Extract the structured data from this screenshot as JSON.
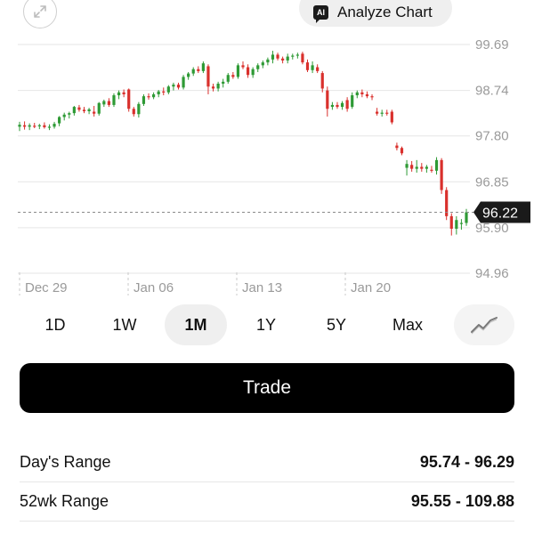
{
  "header": {
    "expand_icon": "expand-arrows-icon",
    "analyze_button": {
      "badge": "AI",
      "label": "Analyze Chart"
    }
  },
  "chart_data": {
    "type": "candlestick",
    "ylim": [
      94.96,
      99.69
    ],
    "y_ticks": [
      "99.69",
      "98.74",
      "97.80",
      "96.85",
      "95.90",
      "94.96"
    ],
    "x_ticks": [
      "Dec 29",
      "Jan 06",
      "Jan 13",
      "Jan 20"
    ],
    "current_price": "96.22",
    "colors": {
      "up": "#2e9a35",
      "down": "#d9302c",
      "grid": "#e6e6e6",
      "axis_text": "#9a9a9a",
      "current_tag": "#1a1a1a"
    },
    "candles": [
      {
        "o": 97.99,
        "h": 98.09,
        "l": 97.9,
        "c": 98.03
      },
      {
        "o": 98.02,
        "h": 98.1,
        "l": 97.93,
        "c": 97.99
      },
      {
        "o": 97.99,
        "h": 98.06,
        "l": 97.92,
        "c": 98.02
      },
      {
        "o": 98.01,
        "h": 98.07,
        "l": 97.96,
        "c": 98.0
      },
      {
        "o": 98.0,
        "h": 98.05,
        "l": 97.94,
        "c": 98.02
      },
      {
        "o": 98.02,
        "h": 98.08,
        "l": 97.95,
        "c": 97.98
      },
      {
        "o": 97.98,
        "h": 98.04,
        "l": 97.92,
        "c": 97.99
      },
      {
        "o": 97.99,
        "h": 98.09,
        "l": 97.95,
        "c": 98.05
      },
      {
        "o": 98.06,
        "h": 98.21,
        "l": 98.0,
        "c": 98.19
      },
      {
        "o": 98.19,
        "h": 98.28,
        "l": 98.12,
        "c": 98.24
      },
      {
        "o": 98.24,
        "h": 98.3,
        "l": 98.16,
        "c": 98.27
      },
      {
        "o": 98.27,
        "h": 98.42,
        "l": 98.22,
        "c": 98.4
      },
      {
        "o": 98.39,
        "h": 98.44,
        "l": 98.3,
        "c": 98.34
      },
      {
        "o": 98.34,
        "h": 98.4,
        "l": 98.27,
        "c": 98.31
      },
      {
        "o": 98.31,
        "h": 98.38,
        "l": 98.25,
        "c": 98.35
      },
      {
        "o": 98.3,
        "h": 98.42,
        "l": 98.2,
        "c": 98.26
      },
      {
        "o": 98.26,
        "h": 98.5,
        "l": 98.22,
        "c": 98.48
      },
      {
        "o": 98.45,
        "h": 98.55,
        "l": 98.4,
        "c": 98.52
      },
      {
        "o": 98.52,
        "h": 98.58,
        "l": 98.4,
        "c": 98.44
      },
      {
        "o": 98.44,
        "h": 98.68,
        "l": 98.4,
        "c": 98.64
      },
      {
        "o": 98.64,
        "h": 98.74,
        "l": 98.56,
        "c": 98.7
      },
      {
        "o": 98.7,
        "h": 98.76,
        "l": 98.6,
        "c": 98.66
      },
      {
        "o": 98.76,
        "h": 98.78,
        "l": 98.3,
        "c": 98.36
      },
      {
        "o": 98.36,
        "h": 98.4,
        "l": 98.2,
        "c": 98.25
      },
      {
        "o": 98.25,
        "h": 98.5,
        "l": 98.18,
        "c": 98.46
      },
      {
        "o": 98.46,
        "h": 98.66,
        "l": 98.42,
        "c": 98.62
      },
      {
        "o": 98.62,
        "h": 98.68,
        "l": 98.55,
        "c": 98.6
      },
      {
        "o": 98.6,
        "h": 98.7,
        "l": 98.56,
        "c": 98.66
      },
      {
        "o": 98.66,
        "h": 98.75,
        "l": 98.6,
        "c": 98.72
      },
      {
        "o": 98.72,
        "h": 98.8,
        "l": 98.64,
        "c": 98.7
      },
      {
        "o": 98.7,
        "h": 98.85,
        "l": 98.66,
        "c": 98.82
      },
      {
        "o": 98.82,
        "h": 98.9,
        "l": 98.74,
        "c": 98.86
      },
      {
        "o": 98.86,
        "h": 98.9,
        "l": 98.76,
        "c": 98.8
      },
      {
        "o": 98.8,
        "h": 99.06,
        "l": 98.76,
        "c": 99.02
      },
      {
        "o": 99.02,
        "h": 99.12,
        "l": 98.96,
        "c": 99.09
      },
      {
        "o": 99.09,
        "h": 99.22,
        "l": 99.04,
        "c": 99.18
      },
      {
        "o": 99.18,
        "h": 99.24,
        "l": 99.1,
        "c": 99.14
      },
      {
        "o": 99.14,
        "h": 99.34,
        "l": 99.1,
        "c": 99.3
      },
      {
        "o": 99.24,
        "h": 99.28,
        "l": 98.66,
        "c": 98.82
      },
      {
        "o": 98.82,
        "h": 98.88,
        "l": 98.72,
        "c": 98.78
      },
      {
        "o": 98.78,
        "h": 98.92,
        "l": 98.72,
        "c": 98.88
      },
      {
        "o": 98.88,
        "h": 98.98,
        "l": 98.8,
        "c": 98.92
      },
      {
        "o": 98.92,
        "h": 99.1,
        "l": 98.88,
        "c": 99.06
      },
      {
        "o": 99.06,
        "h": 99.12,
        "l": 98.98,
        "c": 99.02
      },
      {
        "o": 99.02,
        "h": 99.3,
        "l": 98.98,
        "c": 99.26
      },
      {
        "o": 99.26,
        "h": 99.34,
        "l": 99.18,
        "c": 99.22
      },
      {
        "o": 99.22,
        "h": 99.28,
        "l": 99.0,
        "c": 99.06
      },
      {
        "o": 99.06,
        "h": 99.22,
        "l": 99.0,
        "c": 99.18
      },
      {
        "o": 99.18,
        "h": 99.3,
        "l": 99.12,
        "c": 99.26
      },
      {
        "o": 99.26,
        "h": 99.36,
        "l": 99.2,
        "c": 99.32
      },
      {
        "o": 99.32,
        "h": 99.42,
        "l": 99.26,
        "c": 99.38
      },
      {
        "o": 99.38,
        "h": 99.56,
        "l": 99.3,
        "c": 99.48
      },
      {
        "o": 99.48,
        "h": 99.52,
        "l": 99.36,
        "c": 99.4
      },
      {
        "o": 99.4,
        "h": 99.44,
        "l": 99.3,
        "c": 99.36
      },
      {
        "o": 99.36,
        "h": 99.5,
        "l": 99.3,
        "c": 99.44
      },
      {
        "o": 99.44,
        "h": 99.5,
        "l": 99.38,
        "c": 99.46
      },
      {
        "o": 99.46,
        "h": 99.52,
        "l": 99.4,
        "c": 99.48
      },
      {
        "o": 99.5,
        "h": 99.54,
        "l": 99.28,
        "c": 99.32
      },
      {
        "o": 99.32,
        "h": 99.38,
        "l": 99.12,
        "c": 99.16
      },
      {
        "o": 99.16,
        "h": 99.34,
        "l": 99.1,
        "c": 99.26
      },
      {
        "o": 99.22,
        "h": 99.28,
        "l": 99.1,
        "c": 99.14
      },
      {
        "o": 99.1,
        "h": 99.14,
        "l": 98.7,
        "c": 98.78
      },
      {
        "o": 98.74,
        "h": 98.82,
        "l": 98.2,
        "c": 98.36
      },
      {
        "o": 98.4,
        "h": 98.5,
        "l": 98.34,
        "c": 98.44
      },
      {
        "o": 98.44,
        "h": 98.5,
        "l": 98.36,
        "c": 98.4
      },
      {
        "o": 98.4,
        "h": 98.52,
        "l": 98.34,
        "c": 98.48
      },
      {
        "o": 98.54,
        "h": 98.6,
        "l": 98.3,
        "c": 98.36
      },
      {
        "o": 98.4,
        "h": 98.7,
        "l": 98.36,
        "c": 98.64
      },
      {
        "o": 98.64,
        "h": 98.74,
        "l": 98.58,
        "c": 98.7
      },
      {
        "o": 98.7,
        "h": 98.76,
        "l": 98.6,
        "c": 98.66
      },
      {
        "o": 98.66,
        "h": 98.72,
        "l": 98.58,
        "c": 98.62
      },
      {
        "o": 98.62,
        "h": 98.66,
        "l": 98.54,
        "c": 98.6
      },
      {
        "o": 98.3,
        "h": 98.38,
        "l": 98.22,
        "c": 98.26
      },
      {
        "o": 98.26,
        "h": 98.34,
        "l": 98.2,
        "c": 98.28
      },
      {
        "o": 98.28,
        "h": 98.34,
        "l": 98.22,
        "c": 98.26
      },
      {
        "o": 98.3,
        "h": 98.34,
        "l": 98.04,
        "c": 98.08
      },
      {
        "o": 97.6,
        "h": 97.66,
        "l": 97.5,
        "c": 97.55
      },
      {
        "o": 97.55,
        "h": 97.58,
        "l": 97.4,
        "c": 97.44
      },
      {
        "o": 97.14,
        "h": 97.3,
        "l": 96.98,
        "c": 97.22
      },
      {
        "o": 97.2,
        "h": 97.28,
        "l": 97.06,
        "c": 97.12
      },
      {
        "o": 97.12,
        "h": 97.3,
        "l": 97.04,
        "c": 97.16
      },
      {
        "o": 97.16,
        "h": 97.24,
        "l": 97.06,
        "c": 97.12
      },
      {
        "o": 97.12,
        "h": 97.2,
        "l": 97.04,
        "c": 97.16
      },
      {
        "o": 97.1,
        "h": 97.18,
        "l": 97.04,
        "c": 97.08
      },
      {
        "o": 97.08,
        "h": 97.36,
        "l": 97.0,
        "c": 97.3
      },
      {
        "o": 97.3,
        "h": 97.34,
        "l": 96.6,
        "c": 96.68
      },
      {
        "o": 96.68,
        "h": 96.74,
        "l": 96.06,
        "c": 96.14
      },
      {
        "o": 96.14,
        "h": 96.2,
        "l": 95.74,
        "c": 95.88
      },
      {
        "o": 95.88,
        "h": 96.14,
        "l": 95.76,
        "c": 96.06
      },
      {
        "o": 95.98,
        "h": 96.08,
        "l": 95.86,
        "c": 96.0
      },
      {
        "o": 96.0,
        "h": 96.29,
        "l": 95.94,
        "c": 96.22
      }
    ]
  },
  "ranges": {
    "items": [
      "1D",
      "1W",
      "1M",
      "1Y",
      "5Y",
      "Max"
    ],
    "active": "1M",
    "chart_style_icon": "line-chart-icon"
  },
  "trade": {
    "label": "Trade"
  },
  "stats": [
    {
      "label": "Day's Range",
      "value": "95.74 - 96.29"
    },
    {
      "label": "52wk Range",
      "value": "95.55 - 109.88"
    }
  ]
}
